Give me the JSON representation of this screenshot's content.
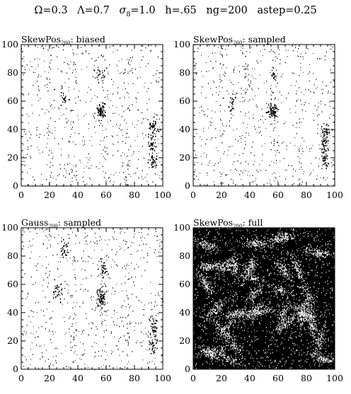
{
  "header": {
    "title_parts": {
      "omega": "Ω=0.3",
      "lambda": "Λ=0.7",
      "sigma_symbol": "σ",
      "sigma_sub": "8",
      "sigma_value": "=1.0",
      "h": "h=.65",
      "ng": "ng=200",
      "astep": "astep=0.25"
    }
  },
  "colors": {
    "ink": "#000000",
    "paper": "#ffffff"
  },
  "chart_data": [
    {
      "type": "scatter",
      "title_main": "SkewPos",
      "title_sub": "200",
      "title_suffix": ": biased",
      "xlim": [
        0,
        100
      ],
      "ylim": [
        0,
        100
      ],
      "xticks": [
        "0",
        "20",
        "40",
        "60",
        "80",
        "100"
      ],
      "yticks": [
        "0",
        "20",
        "40",
        "60",
        "80",
        "100"
      ],
      "background": "white",
      "marker_color": "black",
      "density": "sparse",
      "clusters": [
        {
          "x": 56,
          "y": 53,
          "weight": 1.0
        },
        {
          "x": 93,
          "y": 42,
          "weight": 0.6
        },
        {
          "x": 92,
          "y": 30,
          "weight": 0.5
        },
        {
          "x": 93,
          "y": 18,
          "weight": 0.5
        },
        {
          "x": 30,
          "y": 62,
          "weight": 0.3
        },
        {
          "x": 55,
          "y": 80,
          "weight": 0.3
        }
      ]
    },
    {
      "type": "scatter",
      "title_main": "SkewPos",
      "title_sub": "200",
      "title_suffix": ": sampled",
      "xlim": [
        0,
        100
      ],
      "ylim": [
        0,
        100
      ],
      "xticks": [
        "0",
        "20",
        "40",
        "60",
        "80",
        "100"
      ],
      "yticks": [
        "0",
        "20",
        "40",
        "60",
        "80",
        "100"
      ],
      "background": "white",
      "marker_color": "black",
      "density": "sparse",
      "clusters": [
        {
          "x": 56,
          "y": 54,
          "weight": 1.0
        },
        {
          "x": 93,
          "y": 40,
          "weight": 0.6
        },
        {
          "x": 92,
          "y": 30,
          "weight": 0.5
        },
        {
          "x": 93,
          "y": 19,
          "weight": 0.6
        },
        {
          "x": 28,
          "y": 60,
          "weight": 0.3
        },
        {
          "x": 57,
          "y": 78,
          "weight": 0.3
        }
      ]
    },
    {
      "type": "scatter",
      "title_main": "Gauss",
      "title_sub": "200",
      "title_suffix": ": sampled",
      "xlim": [
        0,
        100
      ],
      "ylim": [
        0,
        100
      ],
      "xticks": [
        "0",
        "20",
        "40",
        "60",
        "80",
        "100"
      ],
      "yticks": [
        "0",
        "20",
        "40",
        "60",
        "80",
        "100"
      ],
      "background": "white",
      "marker_color": "black",
      "density": "sparse",
      "clusters": [
        {
          "x": 56,
          "y": 52,
          "weight": 1.0
        },
        {
          "x": 93,
          "y": 30,
          "weight": 0.6
        },
        {
          "x": 93,
          "y": 18,
          "weight": 0.5
        },
        {
          "x": 30,
          "y": 85,
          "weight": 0.4
        },
        {
          "x": 25,
          "y": 56,
          "weight": 0.4
        },
        {
          "x": 58,
          "y": 72,
          "weight": 0.4
        }
      ]
    },
    {
      "type": "scatter",
      "title_main": "SkewPos",
      "title_sub": "200",
      "title_suffix": ": full",
      "xlim": [
        0,
        100
      ],
      "ylim": [
        0,
        100
      ],
      "xticks": [
        "0",
        "20",
        "40",
        "60",
        "80",
        "100"
      ],
      "yticks": [
        "0",
        "20",
        "40",
        "60",
        "80",
        "100"
      ],
      "background": "black",
      "marker_color": "white",
      "density": "dense"
    }
  ]
}
